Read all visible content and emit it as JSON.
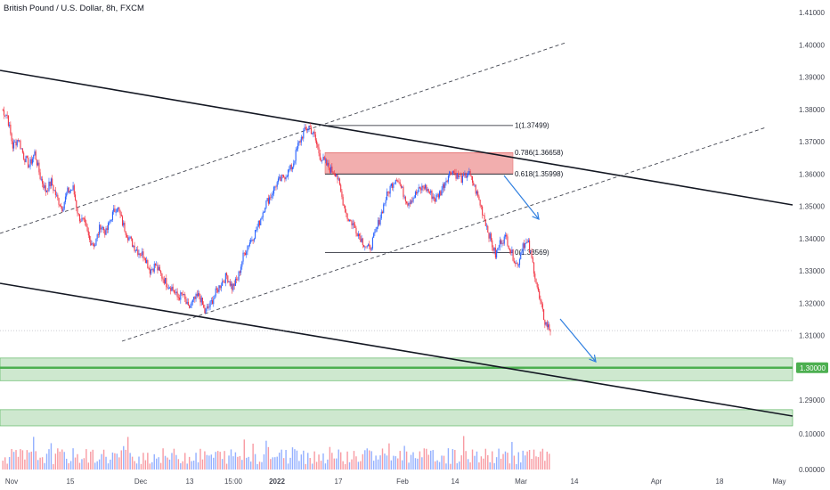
{
  "header": {
    "title": "British Pound / U.S. Dollar, 8h, FXCM"
  },
  "price_axis": {
    "ticks": [
      "1.41000",
      "1.40000",
      "1.39000",
      "1.38000",
      "1.37000",
      "1.36000",
      "1.35000",
      "1.34000",
      "1.33000",
      "1.32000",
      "1.31000",
      "1.29000"
    ],
    "highlight_label": "1.30000"
  },
  "volume_axis": {
    "ticks": [
      "0.10000",
      "0.00000"
    ]
  },
  "time_axis": {
    "ticks": [
      {
        "label": "Nov",
        "bold": false
      },
      {
        "label": "15",
        "bold": false
      },
      {
        "label": "Dec",
        "bold": false
      },
      {
        "label": "13",
        "bold": false
      },
      {
        "label": "15:00",
        "bold": false
      },
      {
        "label": "2022",
        "bold": true
      },
      {
        "label": "17",
        "bold": false
      },
      {
        "label": "Feb",
        "bold": false
      },
      {
        "label": "14",
        "bold": false
      },
      {
        "label": "Mar",
        "bold": false
      },
      {
        "label": "14",
        "bold": false
      },
      {
        "label": "Apr",
        "bold": false
      },
      {
        "label": "18",
        "bold": false
      },
      {
        "label": "May",
        "bold": false
      }
    ]
  },
  "fib_labels": {
    "l1": "1(1.37499)",
    "l0786": "0.786(1.36658)",
    "l0618": "0.618(1.35998)",
    "l0": "0(1.33569)"
  },
  "colors": {
    "up": "#2962ff",
    "down": "#f23645",
    "channel": "#131722",
    "zone_fill": "#a5d6a7",
    "zone_line": "#4caf50",
    "fib_box": "#ef9a9a",
    "arrow": "#2f7fe0"
  },
  "chart_data": {
    "type": "candlestick",
    "title": "British Pound / U.S. Dollar, 8h, FXCM",
    "y_range": [
      1.28,
      1.415
    ],
    "price_path": [
      [
        1.38,
        1.378,
        1.3685,
        1.371,
        1.3655,
        1.3625,
        1.3665,
        1.3592,
        1.3548,
        1.3575,
        1.3528,
        1.3495,
        1.3545,
        1.3555,
        1.3468,
        1.3448,
        1.3395,
        1.3382,
        1.3442,
        1.3418,
        1.3468,
        1.3502,
        1.3448,
        1.3408,
        1.3378,
        1.3358,
        1.3348,
        1.3302,
        1.3318,
        1.3288,
        1.3262,
        1.3248,
        1.3218,
        1.3225,
        1.3182,
        1.3208,
        1.3225,
        1.3172,
        1.3195,
        1.3232,
        1.3262,
        1.3285,
        1.3248,
        1.3275,
        1.3345,
        1.3385,
        1.3412,
        1.3452,
        1.3505,
        1.3532,
        1.3568,
        1.3585,
        1.3602,
        1.3625,
        1.3688,
        1.3728,
        1.3748,
        1.3715,
        1.3655,
        1.3632,
        1.3612,
        1.3602,
        1.3528,
        1.3465,
        1.3445,
        1.3415,
        1.3385,
        1.3365,
        1.3412,
        1.3468,
        1.3525,
        1.3565,
        1.3592,
        1.3548,
        1.3512,
        1.3528,
        1.3548,
        1.3562,
        1.3542,
        1.3522,
        1.3545,
        1.3585,
        1.3612,
        1.3595,
        1.3582,
        1.3605,
        1.3568,
        1.3518,
        1.3462,
        1.3402,
        1.3348,
        1.3395,
        1.3402,
        1.3352,
        1.3315,
        1.3385,
        1.3382,
        1.3305,
        1.3212,
        1.3142,
        1.3115
      ]
    ],
    "fibonacci": [
      {
        "level": 1,
        "price": 1.37499
      },
      {
        "level": 0.786,
        "price": 1.36658
      },
      {
        "level": 0.618,
        "price": 1.35998
      },
      {
        "level": 0,
        "price": 1.33569
      }
    ],
    "horizontal_levels": [
      1.3
    ],
    "support_zones": [
      [
        1.296,
        1.303
      ],
      [
        1.282,
        1.287
      ]
    ]
  }
}
